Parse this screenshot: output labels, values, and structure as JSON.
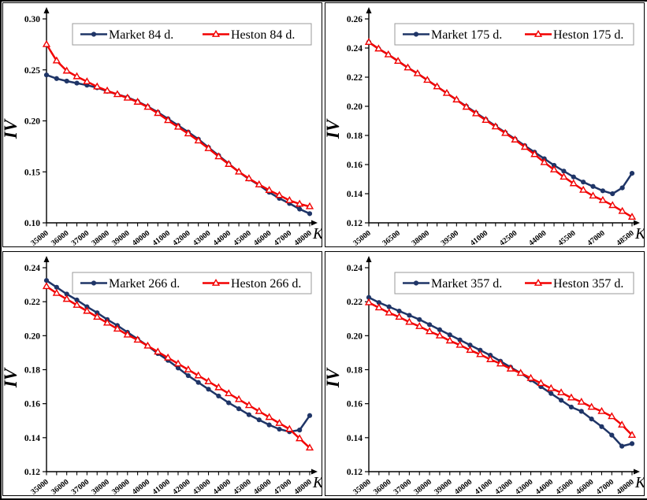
{
  "page": {
    "background": "#ffffff",
    "border_color": "#000000"
  },
  "colors": {
    "market": "#1f3567",
    "heston": "#f20000",
    "legend_border": "#9a9a9a",
    "axis": "#000000",
    "text": "#000000"
  },
  "chart_data": [
    {
      "id": "84d",
      "type": "line",
      "title": "",
      "xlabel": "K",
      "ylabel": "IV",
      "grid": false,
      "legend_position": "top-inside",
      "legend": [
        "Market 84 d.",
        "Heston 84 d."
      ],
      "x_axis": {
        "min": 35000,
        "max": 48000,
        "tick_interval": 500,
        "tick_labels": [
          "35000",
          "36000",
          "37000",
          "38000",
          "39000",
          "40000",
          "41000",
          "42000",
          "43000",
          "44000",
          "45000",
          "46000",
          "47000",
          "48000"
        ]
      },
      "y_axis": {
        "min": 0.1,
        "max": 0.3,
        "tick_labels": [
          "0.10",
          "0.15",
          "0.20",
          "0.25",
          "0.30"
        ]
      },
      "strikes": [
        35000,
        35500,
        36000,
        36500,
        37000,
        37500,
        38000,
        38500,
        39000,
        39500,
        40000,
        40500,
        41000,
        41500,
        42000,
        42500,
        43000,
        43500,
        44000,
        44500,
        45000,
        45500,
        46000,
        46500,
        47000,
        47500,
        48000
      ],
      "series": [
        {
          "name": "Market 84 d.",
          "color_key": "market",
          "marker": "filled-circle",
          "values": [
            0.245,
            0.2415,
            0.239,
            0.237,
            0.235,
            0.2325,
            0.229,
            0.226,
            0.223,
            0.219,
            0.214,
            0.2085,
            0.202,
            0.1955,
            0.189,
            0.182,
            0.174,
            0.166,
            0.158,
            0.15,
            0.143,
            0.137,
            0.13,
            0.124,
            0.119,
            0.1135,
            0.109
          ]
        },
        {
          "name": "Heston 84 d.",
          "color_key": "heston",
          "marker": "open-triangle",
          "values": [
            0.275,
            0.259,
            0.249,
            0.2435,
            0.2385,
            0.2335,
            0.2295,
            0.226,
            0.2225,
            0.2185,
            0.2135,
            0.2075,
            0.2005,
            0.194,
            0.1875,
            0.1805,
            0.173,
            0.165,
            0.1575,
            0.15,
            0.1435,
            0.1375,
            0.132,
            0.127,
            0.122,
            0.1185,
            0.116
          ]
        }
      ]
    },
    {
      "id": "175d",
      "type": "line",
      "title": "",
      "xlabel": "K",
      "ylabel": "IV",
      "grid": false,
      "legend_position": "top-inside",
      "legend": [
        "Market 175 d.",
        "Heston 175 d."
      ],
      "x_axis": {
        "min": 35000,
        "max": 48500,
        "tick_interval": 500,
        "tick_labels": [
          "35000",
          "36500",
          "38000",
          "39500",
          "41000",
          "42500",
          "44000",
          "45500",
          "47000",
          "48500"
        ]
      },
      "y_axis": {
        "min": 0.12,
        "max": 0.26,
        "tick_labels": [
          "0.12",
          "0.14",
          "0.16",
          "0.18",
          "0.20",
          "0.22",
          "0.24",
          "0.26"
        ]
      },
      "strikes": [
        35000,
        35500,
        36000,
        36500,
        37000,
        37500,
        38000,
        38500,
        39000,
        39500,
        40000,
        40500,
        41000,
        41500,
        42000,
        42500,
        43000,
        43500,
        44000,
        44500,
        45000,
        45500,
        46000,
        46500,
        47000,
        47500,
        48000,
        48500
      ],
      "series": [
        {
          "name": "Market 175 d.",
          "color_key": "market",
          "marker": "filled-circle",
          "values": [
            0.244,
            0.2395,
            0.2355,
            0.231,
            0.2265,
            0.2225,
            0.218,
            0.2135,
            0.209,
            0.2045,
            0.2,
            0.1955,
            0.191,
            0.1865,
            0.182,
            0.1775,
            0.173,
            0.1685,
            0.164,
            0.1595,
            0.1555,
            0.1515,
            0.148,
            0.145,
            0.142,
            0.14,
            0.144,
            0.154
          ]
        },
        {
          "name": "Heston 175 d.",
          "color_key": "heston",
          "marker": "open-triangle",
          "values": [
            0.244,
            0.2395,
            0.2355,
            0.231,
            0.2265,
            0.2225,
            0.218,
            0.2135,
            0.209,
            0.2045,
            0.1995,
            0.195,
            0.1905,
            0.186,
            0.1815,
            0.177,
            0.172,
            0.167,
            0.1615,
            0.1565,
            0.1515,
            0.147,
            0.1425,
            0.1385,
            0.1355,
            0.132,
            0.128,
            0.124
          ]
        }
      ]
    },
    {
      "id": "266d",
      "type": "line",
      "title": "",
      "xlabel": "K",
      "ylabel": "IV",
      "grid": false,
      "legend_position": "top-inside",
      "legend": [
        "Market 266 d.",
        "Heston 266 d."
      ],
      "x_axis": {
        "min": 35000,
        "max": 48000,
        "tick_interval": 500,
        "tick_labels": [
          "35000",
          "36000",
          "37000",
          "38000",
          "39000",
          "40000",
          "41000",
          "42000",
          "43000",
          "44000",
          "45000",
          "46000",
          "47000",
          "48000"
        ]
      },
      "y_axis": {
        "min": 0.12,
        "max": 0.24,
        "tick_labels": [
          "0.12",
          "0.14",
          "0.16",
          "0.18",
          "0.20",
          "0.22",
          "0.24"
        ]
      },
      "strikes": [
        35000,
        35500,
        36000,
        36500,
        37000,
        37500,
        38000,
        38500,
        39000,
        39500,
        40000,
        40500,
        41000,
        41500,
        42000,
        42500,
        43000,
        43500,
        44000,
        44500,
        45000,
        45500,
        46000,
        46500,
        47000,
        47500,
        48000
      ],
      "series": [
        {
          "name": "Market 266 d.",
          "color_key": "market",
          "marker": "filled-circle",
          "values": [
            0.2325,
            0.2285,
            0.2245,
            0.221,
            0.217,
            0.2135,
            0.2095,
            0.206,
            0.202,
            0.198,
            0.194,
            0.1895,
            0.1855,
            0.181,
            0.1765,
            0.1725,
            0.1685,
            0.1645,
            0.1605,
            0.157,
            0.1535,
            0.1505,
            0.1475,
            0.145,
            0.1435,
            0.1445,
            0.153
          ]
        },
        {
          "name": "Heston 266 d.",
          "color_key": "heston",
          "marker": "open-triangle",
          "values": [
            0.229,
            0.225,
            0.2215,
            0.218,
            0.2145,
            0.211,
            0.2075,
            0.204,
            0.2005,
            0.1975,
            0.194,
            0.1905,
            0.187,
            0.1835,
            0.18,
            0.1765,
            0.173,
            0.1695,
            0.166,
            0.1625,
            0.159,
            0.1555,
            0.152,
            0.1485,
            0.145,
            0.1395,
            0.134
          ]
        }
      ]
    },
    {
      "id": "357d",
      "type": "line",
      "title": "",
      "xlabel": "K",
      "ylabel": "IV",
      "grid": false,
      "legend_position": "top-inside",
      "legend": [
        "Market 357 d.",
        "Heston 357 d."
      ],
      "x_axis": {
        "min": 35000,
        "max": 48000,
        "tick_interval": 500,
        "tick_labels": [
          "35000",
          "36000",
          "37000",
          "38000",
          "39000",
          "40000",
          "41000",
          "42000",
          "43000",
          "44000",
          "45000",
          "46000",
          "47000",
          "48000"
        ]
      },
      "y_axis": {
        "min": 0.12,
        "max": 0.24,
        "tick_labels": [
          "0.12",
          "0.14",
          "0.16",
          "0.18",
          "0.20",
          "0.22",
          "0.24"
        ]
      },
      "strikes": [
        35000,
        35500,
        36000,
        36500,
        37000,
        37500,
        38000,
        38500,
        39000,
        39500,
        40000,
        40500,
        41000,
        41500,
        42000,
        42500,
        43000,
        43500,
        44000,
        44500,
        45000,
        45500,
        46000,
        46500,
        47000,
        47500,
        48000
      ],
      "series": [
        {
          "name": "Market 357 d.",
          "color_key": "market",
          "marker": "filled-circle",
          "values": [
            0.2225,
            0.2195,
            0.217,
            0.2145,
            0.212,
            0.2095,
            0.2065,
            0.2035,
            0.2005,
            0.1975,
            0.1945,
            0.1915,
            0.1885,
            0.185,
            0.1815,
            0.178,
            0.174,
            0.17,
            0.166,
            0.162,
            0.158,
            0.1555,
            0.151,
            0.1465,
            0.1415,
            0.135,
            0.1365
          ]
        },
        {
          "name": "Heston 357 d.",
          "color_key": "heston",
          "marker": "open-triangle",
          "values": [
            0.2195,
            0.2165,
            0.2135,
            0.211,
            0.208,
            0.2055,
            0.2025,
            0.2,
            0.197,
            0.1945,
            0.1915,
            0.189,
            0.186,
            0.1835,
            0.1805,
            0.178,
            0.175,
            0.172,
            0.169,
            0.1665,
            0.1635,
            0.161,
            0.158,
            0.1555,
            0.1525,
            0.1475,
            0.1415
          ]
        }
      ]
    }
  ]
}
